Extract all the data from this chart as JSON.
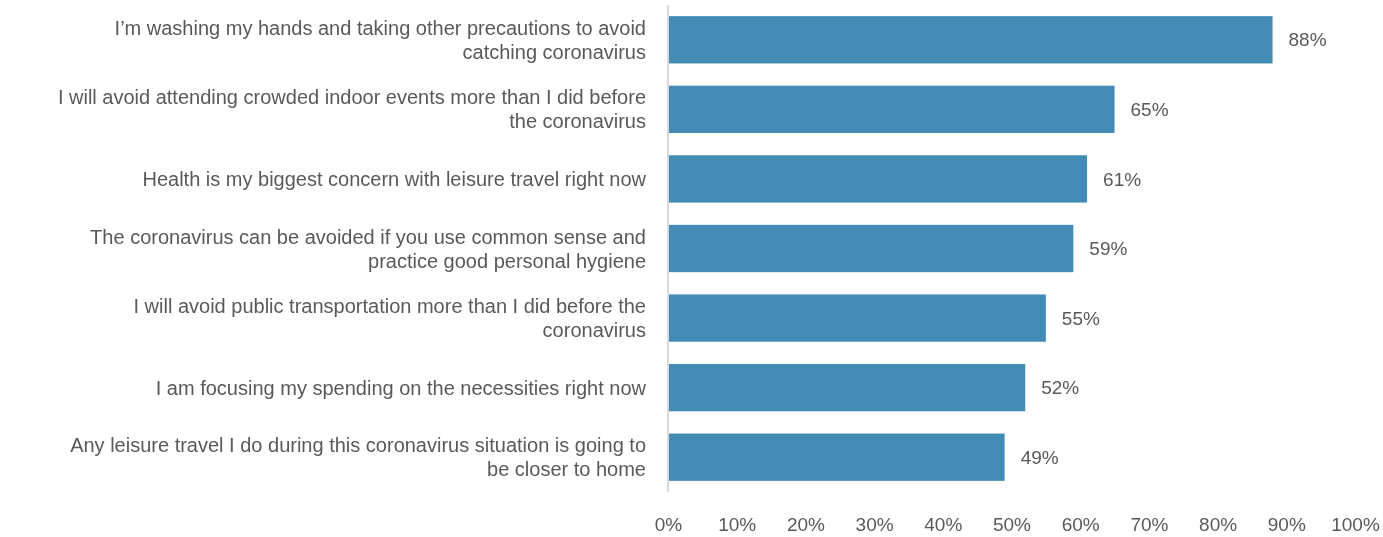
{
  "chart_data": {
    "type": "bar",
    "orientation": "horizontal",
    "categories": [
      "I’m washing my hands and taking other precautions to avoid catching coronavirus",
      "I will avoid attending crowded indoor events more than I did before the coronavirus",
      "Health is my biggest concern with leisure travel right now",
      "The coronavirus can be avoided if you use common sense and practice good personal hygiene",
      "I will avoid public transportation more than I did before the coronavirus",
      "I am focusing my spending on the necessities right now",
      "Any leisure travel I do during this coronavirus situation is going to be closer to home"
    ],
    "values": [
      88,
      65,
      61,
      59,
      55,
      52,
      49
    ],
    "value_labels": [
      "88%",
      "65%",
      "61%",
      "59%",
      "55%",
      "52%",
      "49%"
    ],
    "color": "#428bb5",
    "xlim": [
      0,
      100
    ],
    "xticks": [
      {
        "value": 0,
        "label": "0%"
      },
      {
        "value": 10,
        "label": "10%"
      },
      {
        "value": 20,
        "label": "20%"
      },
      {
        "value": 30,
        "label": "30%"
      },
      {
        "value": 40,
        "label": "40%"
      },
      {
        "value": 50,
        "label": "50%"
      },
      {
        "value": 60,
        "label": "60%"
      },
      {
        "value": 70,
        "label": "70%"
      },
      {
        "value": 80,
        "label": "80%"
      },
      {
        "value": 90,
        "label": "90%"
      },
      {
        "value": 100,
        "label": "100%"
      }
    ],
    "grid": false
  }
}
